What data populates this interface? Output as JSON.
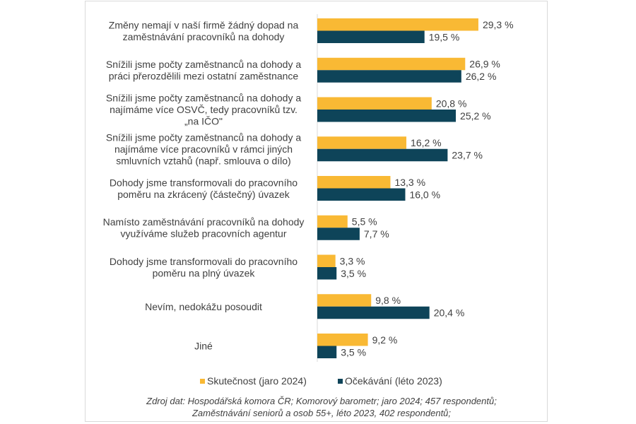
{
  "chart_data": {
    "type": "bar",
    "orientation": "horizontal",
    "categories": [
      [
        "Změny nemají v naší firmě žádný dopad na",
        "zaměstnávání pracovníků na dohody"
      ],
      [
        "Snížili jsme počty zaměstnanců na dohody a",
        "práci přerozdělili mezi ostatní zaměstnance"
      ],
      [
        "Snížili jsme počty zaměstnanců na dohody a",
        "najímáme více OSVČ, tedy pracovníků tzv.",
        "„na IČO\""
      ],
      [
        "Snížili jsme počty zaměstnanců na dohody a",
        "najímáme více pracovníků v rámci jiných",
        "smluvních vztahů (např. smlouva o dílo)"
      ],
      [
        "Dohody jsme transformovali do pracovního",
        "poměru na zkrácený (částečný) úvazek"
      ],
      [
        "Namísto zaměstnávání pracovníků na dohody",
        "využíváme služeb pracovních agentur"
      ],
      [
        "Dohody jsme transformovali do pracovního",
        "poměru na plný úvazek"
      ],
      [
        "Nevím, nedokážu posoudit"
      ],
      [
        "Jiné"
      ]
    ],
    "series": [
      {
        "name": "Skutečnost (jaro 2024)",
        "color": "#F9B934",
        "values": [
          29.3,
          26.9,
          20.8,
          16.2,
          13.3,
          5.5,
          3.3,
          9.8,
          9.2
        ],
        "labels": [
          "29,3 %",
          "26,9 %",
          "20,8 %",
          "16,2 %",
          "13,3 %",
          "5,5 %",
          "3,3 %",
          "9,8 %",
          "9,2 %"
        ]
      },
      {
        "name": "Očekávání (léto 2023)",
        "color": "#0E4459",
        "values": [
          19.5,
          26.2,
          25.2,
          23.7,
          16.0,
          7.7,
          3.5,
          20.4,
          3.5
        ],
        "labels": [
          "19,5 %",
          "26,2 %",
          "25,2 %",
          "23,7 %",
          "16,0 %",
          "7,7 %",
          "3,5 %",
          "20,4 %",
          "3,5 %"
        ]
      }
    ],
    "unit": "%",
    "legend_position": "bottom",
    "grid": false,
    "source": [
      "Zdroj dat: Hospodářská komora ČR; Komorový barometr; jaro 2024; 457 respondentů;",
      "Zaměstnávání seniorů a osob 55+, léto 2023, 402 respondentů;"
    ]
  }
}
